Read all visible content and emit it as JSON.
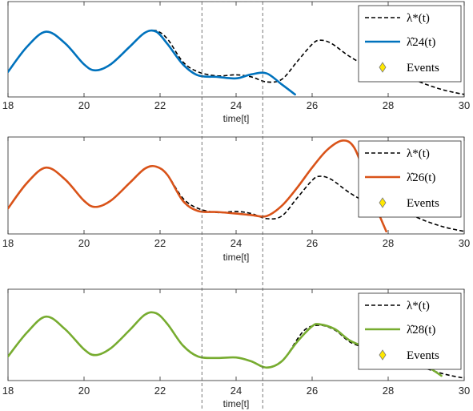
{
  "chart_data": [
    {
      "type": "line",
      "xlabel": "time[t]",
      "ylabel": "",
      "xlim": [
        18,
        30
      ],
      "xticks": [
        "18",
        "20",
        "22",
        "24",
        "26",
        "28",
        "30"
      ],
      "legend": {
        "placement": "top-right",
        "entries": [
          "λ*(t)",
          "λ̂24(t)",
          "Events"
        ]
      },
      "series": [
        {
          "name": "λ*(t)",
          "style": "dashed",
          "color": "#000000",
          "x": [
            18.0,
            18.5,
            19.0,
            19.5,
            20.0,
            20.3,
            20.7,
            21.2,
            21.6,
            21.9,
            22.2,
            22.6,
            23.0,
            23.5,
            24.0,
            24.4,
            24.8,
            25.2,
            25.6,
            26.0,
            26.2,
            26.5,
            27.0,
            27.5,
            28.0,
            28.5,
            29.0,
            29.5,
            30.0
          ],
          "values": [
            0.05,
            0.55,
            0.85,
            0.62,
            0.2,
            0.08,
            0.2,
            0.55,
            0.83,
            0.87,
            0.7,
            0.25,
            0.05,
            -0.03,
            -0.01,
            -0.05,
            -0.15,
            -0.1,
            0.25,
            0.6,
            0.68,
            0.62,
            0.35,
            0.15,
            0.05,
            -0.05,
            -0.2,
            -0.32,
            -0.4
          ]
        },
        {
          "name": "λ̂24(t)",
          "style": "solid",
          "color": "#0072bd",
          "x": [
            18.0,
            18.5,
            19.0,
            19.5,
            20.0,
            20.3,
            20.7,
            21.2,
            21.6,
            21.9,
            22.2,
            22.6,
            23.0,
            23.5,
            24.0,
            24.4,
            24.8,
            25.2,
            25.55
          ],
          "values": [
            0.05,
            0.55,
            0.85,
            0.62,
            0.2,
            0.08,
            0.2,
            0.55,
            0.83,
            0.85,
            0.6,
            0.2,
            -0.02,
            -0.05,
            -0.08,
            0.0,
            0.02,
            -0.2,
            -0.4
          ]
        }
      ]
    },
    {
      "type": "line",
      "xlabel": "time[t]",
      "ylabel": "",
      "xlim": [
        18,
        30
      ],
      "xticks": [
        "18",
        "20",
        "22",
        "24",
        "26",
        "28",
        "30"
      ],
      "legend": {
        "placement": "top-right",
        "entries": [
          "λ*(t)",
          "λ̂26(t)",
          "Events"
        ]
      },
      "series": [
        {
          "name": "λ*(t)",
          "style": "dashed",
          "color": "#000000",
          "x": [
            18.0,
            18.5,
            19.0,
            19.5,
            20.0,
            20.3,
            20.7,
            21.2,
            21.6,
            21.9,
            22.2,
            22.6,
            23.0,
            23.5,
            24.0,
            24.4,
            24.8,
            25.2,
            25.6,
            26.0,
            26.2,
            26.5,
            27.0,
            27.5,
            28.0,
            28.5,
            29.0,
            29.5,
            30.0
          ],
          "values": [
            0.05,
            0.55,
            0.85,
            0.62,
            0.2,
            0.08,
            0.2,
            0.55,
            0.83,
            0.87,
            0.7,
            0.25,
            0.05,
            -0.03,
            -0.01,
            -0.05,
            -0.15,
            -0.1,
            0.25,
            0.6,
            0.68,
            0.62,
            0.35,
            0.15,
            0.05,
            -0.05,
            -0.2,
            -0.32,
            -0.4
          ]
        },
        {
          "name": "λ̂26(t)",
          "style": "solid",
          "color": "#d95319",
          "x": [
            18.0,
            18.5,
            19.0,
            19.5,
            20.0,
            20.3,
            20.7,
            21.2,
            21.6,
            21.9,
            22.2,
            22.6,
            23.0,
            23.5,
            24.0,
            24.4,
            24.8,
            25.2,
            25.6,
            26.0,
            26.4,
            26.8,
            27.1,
            27.4,
            27.7,
            27.95
          ],
          "values": [
            0.05,
            0.55,
            0.85,
            0.62,
            0.2,
            0.08,
            0.2,
            0.55,
            0.83,
            0.87,
            0.7,
            0.2,
            0.0,
            -0.02,
            -0.05,
            -0.08,
            -0.1,
            0.1,
            0.45,
            0.85,
            1.2,
            1.38,
            1.25,
            0.7,
            0.05,
            -0.4
          ]
        }
      ]
    },
    {
      "type": "line",
      "xlabel": "time[t]",
      "ylabel": "",
      "xlim": [
        18,
        30
      ],
      "xticks": [
        "18",
        "20",
        "22",
        "24",
        "26",
        "28",
        "30"
      ],
      "legend": {
        "placement": "top-right",
        "entries": [
          "λ*(t)",
          "λ̂28(t)",
          "Events"
        ]
      },
      "series": [
        {
          "name": "λ*(t)",
          "style": "dashed",
          "color": "#000000",
          "x": [
            25.4,
            25.8,
            26.2,
            26.6,
            27.0,
            27.5,
            28.0,
            28.5,
            29.0,
            29.5,
            30.0
          ],
          "values": [
            0.15,
            0.6,
            0.7,
            0.6,
            0.35,
            0.2,
            0.05,
            -0.05,
            -0.2,
            -0.32,
            -0.4
          ]
        },
        {
          "name": "λ̂28(t)",
          "style": "solid",
          "color": "#77ac30",
          "x": [
            18.0,
            18.5,
            19.0,
            19.5,
            20.0,
            20.3,
            20.7,
            21.2,
            21.6,
            21.9,
            22.2,
            22.6,
            23.0,
            23.5,
            24.0,
            24.4,
            24.8,
            25.2,
            25.6,
            26.0,
            26.2,
            26.6,
            27.0,
            27.5,
            28.0,
            28.5,
            29.0,
            29.4
          ],
          "values": [
            0.05,
            0.55,
            0.88,
            0.62,
            0.2,
            0.08,
            0.22,
            0.6,
            0.92,
            0.95,
            0.72,
            0.28,
            0.05,
            0.02,
            0.03,
            -0.05,
            -0.18,
            -0.05,
            0.35,
            0.68,
            0.72,
            0.62,
            0.38,
            0.22,
            0.08,
            0.0,
            -0.15,
            -0.35
          ]
        }
      ]
    }
  ]
}
